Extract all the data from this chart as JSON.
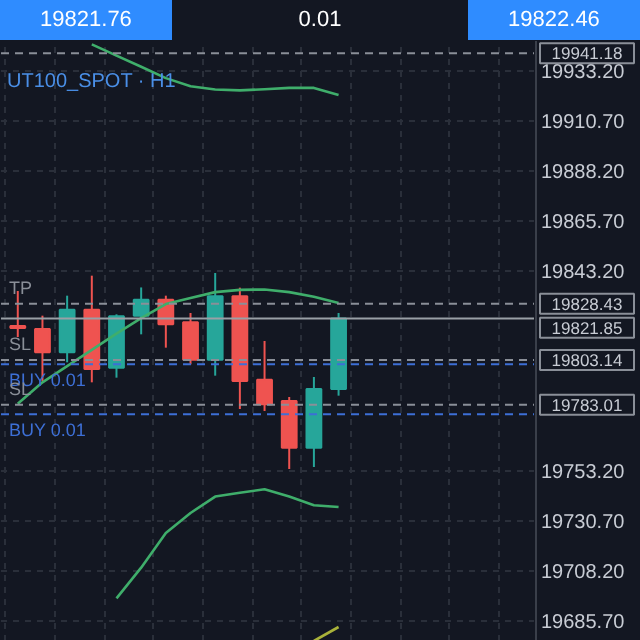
{
  "chart_data": {
    "type": "candlestick",
    "title": "UT100_SPOT · H1",
    "categories": [
      null,
      null,
      null,
      null,
      null,
      null,
      null,
      null,
      null,
      null,
      null,
      null,
      null,
      null
    ],
    "ohlc": [
      [
        19818.5,
        19834.2,
        19813.5,
        19817.5
      ],
      [
        19817.1,
        19823.1,
        19793.7,
        19806.6
      ],
      [
        19806.6,
        19832.1,
        19802.1,
        19825.8
      ],
      [
        19825.8,
        19841.1,
        19793.1,
        19799.1
      ],
      [
        19799.7,
        19823.7,
        19795.2,
        19822.8
      ],
      [
        19823.1,
        19835.8,
        19814.7,
        19830.3
      ],
      [
        19830.3,
        19832.1,
        19808.7,
        19819.2
      ],
      [
        19820.1,
        19824.3,
        19801.2,
        19803.3
      ],
      [
        19803.3,
        19842.3,
        19796.1,
        19831.8
      ],
      [
        19831.8,
        19835.7,
        19781.1,
        19793.7
      ],
      [
        19794.3,
        19811.7,
        19780.2,
        19783.2
      ],
      [
        19784.7,
        19786.5,
        19754.1,
        19763.7
      ],
      [
        19763.7,
        19795.5,
        19755.0,
        19790.1
      ],
      [
        19790.1,
        19824.3,
        19787.1,
        19821.85
      ]
    ],
    "colors": [
      "#ef5350",
      "#ef5350",
      "#26a69a",
      "#ef5350",
      "#26a69a",
      "#26a69a",
      "#ef5350",
      "#ef5350",
      "#26a69a",
      "#ef5350",
      "#ef5350",
      "#ef5350",
      "#26a69a",
      "#26a69a"
    ],
    "series": [
      {
        "type": "line",
        "color": "#3fae6b",
        "values": [
          null,
          null,
          null,
          19945.2,
          19940.1,
          19935.1,
          19930.0,
          19926.3,
          19924.9,
          19924.5,
          19925.0,
          19925.6,
          19925.6,
          19922.4
        ]
      },
      {
        "type": "line",
        "color": "#3fae6b",
        "values": [
          19783.5,
          19793.1,
          19800.4,
          19807.7,
          19815.0,
          19822.0,
          19828.3,
          19831.1,
          19833.7,
          19834.7,
          19834.9,
          19833.7,
          19831.6,
          19828.8
        ]
      },
      {
        "type": "line",
        "color": "#3fae6b",
        "values": [
          null,
          null,
          null,
          null,
          19695.9,
          19709.7,
          19725.3,
          19734.3,
          19741.7,
          19743.4,
          19745.0,
          19741.7,
          19737.8,
          19737.0
        ]
      },
      {
        "type": "line",
        "color": "#a9b23a",
        "values": [
          null,
          null,
          null,
          null,
          null,
          null,
          null,
          null,
          null,
          null,
          null,
          null,
          19676.7,
          19683.0
        ]
      }
    ],
    "ylim": [
      19676.7,
      19946.7
    ],
    "yticks": [
      {
        "value": 19933.2,
        "label": "19933.20"
      },
      {
        "value": 19910.7,
        "label": "19910.70"
      },
      {
        "value": 19888.2,
        "label": "19888.20"
      },
      {
        "value": 19865.7,
        "label": "19865.70"
      },
      {
        "value": 19843.2,
        "label": "19843.20"
      },
      {
        "value": 19753.2,
        "label": "19753.20"
      },
      {
        "value": 19730.7,
        "label": "19730.70"
      },
      {
        "value": 19708.2,
        "label": "19708.20"
      },
      {
        "value": 19685.7,
        "label": "19685.70"
      }
    ],
    "tick_labels": "y",
    "grid": true,
    "ref_lines": [
      {
        "axis": "y",
        "value": 19941.18,
        "label": "19941.18",
        "color": "#8a8f98",
        "line_style": "dashed"
      },
      {
        "axis": "y",
        "value": 19828.43,
        "label": "19828.43",
        "color": "#8a8f98",
        "line_style": "dashed"
      },
      {
        "axis": "y",
        "value": 19821.85,
        "label": "19821.85",
        "color": "#9aa0a6",
        "line_style": "solid"
      },
      {
        "axis": "y",
        "value": 19803.14,
        "label": "19803.14",
        "color": "#8a8f98",
        "line_style": "dashed"
      },
      {
        "axis": "y",
        "value": 19801.2,
        "label": null,
        "color": "#3d6fd6",
        "line_style": "dashed"
      },
      {
        "axis": "y",
        "value": 19783.01,
        "label": "19783.01",
        "color": "#8a8f98",
        "line_style": "dashed"
      },
      {
        "axis": "y",
        "value": 19778.7,
        "label": null,
        "color": "#3d6fd6",
        "line_style": "dashed"
      }
    ],
    "annotations": [
      "19821.76",
      "0.01",
      "19822.46",
      {
        "text": "TP",
        "y": 19828.43
      },
      {
        "text": "SL",
        "y": 19803.14
      },
      {
        "text": "BUY 0.01",
        "y": 19801.2
      },
      {
        "text": "SL",
        "y": 19783.01
      },
      {
        "text": "BUY 0.01",
        "y": 19778.7
      }
    ]
  }
}
